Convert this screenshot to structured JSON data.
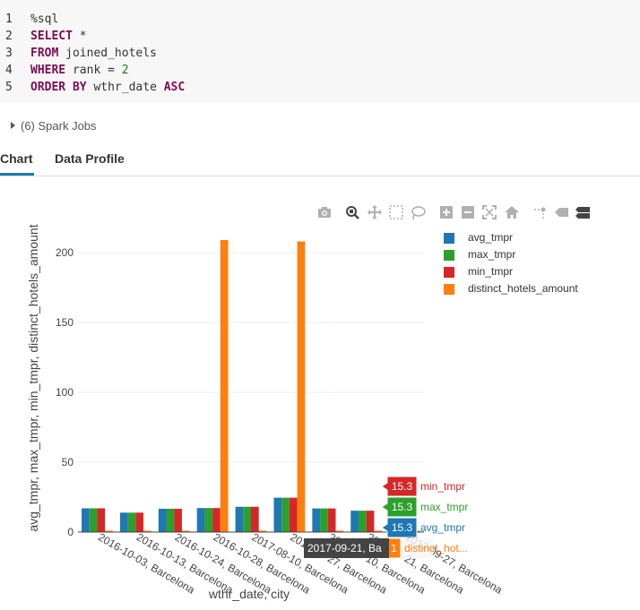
{
  "code": {
    "lines": [
      {
        "n": "1",
        "parts": [
          [
            "plain",
            "%sql"
          ]
        ]
      },
      {
        "n": "2",
        "parts": [
          [
            "kw",
            "SELECT"
          ],
          [
            "plain",
            " *"
          ]
        ]
      },
      {
        "n": "3",
        "parts": [
          [
            "kw",
            "FROM"
          ],
          [
            "plain",
            " joined_hotels"
          ]
        ]
      },
      {
        "n": "4",
        "parts": [
          [
            "kw",
            "WHERE"
          ],
          [
            "plain",
            " rank = "
          ],
          [
            "num",
            "2"
          ]
        ]
      },
      {
        "n": "5",
        "parts": [
          [
            "kw",
            "ORDER BY"
          ],
          [
            "plain",
            " wthr_date "
          ],
          [
            "kw",
            "ASC"
          ]
        ]
      }
    ]
  },
  "spark_jobs_label": "(6) Spark Jobs",
  "tabs": {
    "chart": "Chart",
    "data_profile": "Data Profile"
  },
  "modebar": [
    "camera-icon",
    "zoom-icon",
    "pan-icon",
    "box-select-icon",
    "lasso-select-icon",
    "zoom-in-icon",
    "zoom-out-icon",
    "autoscale-icon",
    "reset-axes-icon",
    "spike-lines-icon",
    "hover-closest-icon",
    "hover-compare-icon"
  ],
  "chart_data": {
    "type": "bar",
    "xlabel": "wthr_date, city",
    "ylabel": "avg_tmpr, max_tmpr, min_tmpr, distinct_hotels_amount",
    "ylim": [
      0,
      230
    ],
    "yticks": [
      0,
      50,
      100,
      150,
      200
    ],
    "grid": true,
    "legend_position": "top-right",
    "categories": [
      "2016-10-03, Barcelona",
      "2016-10-13, Barcelona",
      "2016-10-24, Barcelona",
      "2016-10-28, Barcelona",
      "2017-08-10, Barcelona",
      "2017-08-27, Barcelona",
      "2017-09-10, Barcelona",
      "2017-09-21, Barcelona",
      "2017-09-27, Barcelona"
    ],
    "series": [
      {
        "name": "avg_tmpr",
        "color": "#1f77b4",
        "values": [
          17.0,
          13.9,
          16.7,
          17.2,
          18.1,
          24.6,
          16.9,
          15.3,
          15.3
        ]
      },
      {
        "name": "max_tmpr",
        "color": "#2ca02c",
        "values": [
          17.0,
          13.9,
          16.7,
          17.2,
          18.1,
          24.6,
          16.9,
          15.3,
          15.3
        ]
      },
      {
        "name": "min_tmpr",
        "color": "#d62728",
        "values": [
          17.0,
          13.9,
          16.7,
          17.2,
          18.1,
          24.6,
          16.9,
          15.3,
          15.3
        ]
      },
      {
        "name": "distinct_hotels_amount",
        "color": "#ff7f0e",
        "values": [
          1,
          1,
          1,
          209,
          1,
          208,
          1,
          1,
          1
        ]
      }
    ],
    "hover": {
      "category": "2017-09-21, Ba",
      "labels": [
        {
          "value": "15.3",
          "name": "min_tmpr",
          "color": "#d62728"
        },
        {
          "value": "15.3",
          "name": "max_tmpr",
          "color": "#2ca02c"
        },
        {
          "value": "15.3",
          "name": "avg_tmpr",
          "color": "#1f77b4"
        },
        {
          "value": "1",
          "name": "distinct_hot...",
          "color": "#ff7f0e"
        }
      ]
    }
  }
}
